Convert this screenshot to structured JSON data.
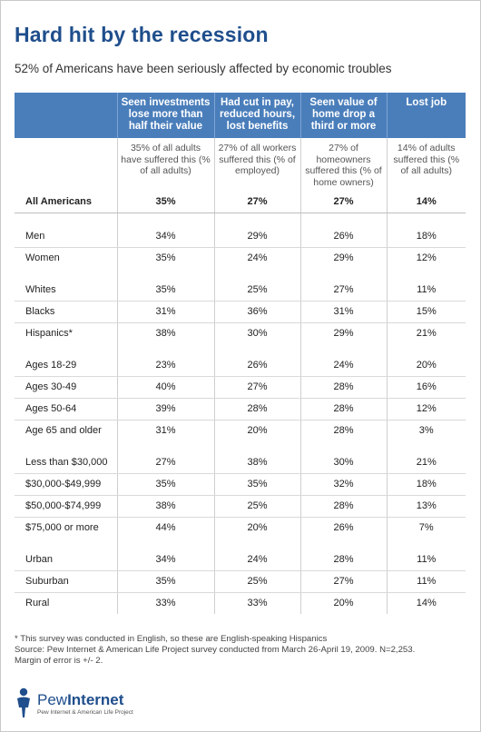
{
  "title": "Hard hit by the recession",
  "subtitle": "52% of Americans have been seriously affected by economic troubles",
  "chart_data": {
    "type": "table",
    "columns": [
      "",
      "Seen investments lose more than half their value",
      "Had cut in pay, reduced hours, lost benefits",
      "Seen value of home drop a third or more",
      "Lost job"
    ],
    "column_notes": [
      "",
      "35% of all adults have suffered this (% of all adults)",
      "27% of all workers suffered this (% of employed)",
      "27% of homeowners suffered this (% of home owners)",
      "14% of adults suffered this (% of all adults)"
    ],
    "all": {
      "label": "All Americans",
      "values": [
        "35%",
        "27%",
        "27%",
        "14%"
      ]
    },
    "groups": [
      [
        {
          "label": "Men",
          "values": [
            "34%",
            "29%",
            "26%",
            "18%"
          ]
        },
        {
          "label": "Women",
          "values": [
            "35%",
            "24%",
            "29%",
            "12%"
          ]
        }
      ],
      [
        {
          "label": "Whites",
          "values": [
            "35%",
            "25%",
            "27%",
            "11%"
          ]
        },
        {
          "label": "Blacks",
          "values": [
            "31%",
            "36%",
            "31%",
            "15%"
          ]
        },
        {
          "label": "Hispanics*",
          "values": [
            "38%",
            "30%",
            "29%",
            "21%"
          ]
        }
      ],
      [
        {
          "label": "Ages 18-29",
          "values": [
            "23%",
            "26%",
            "24%",
            "20%"
          ]
        },
        {
          "label": "Ages 30-49",
          "values": [
            "40%",
            "27%",
            "28%",
            "16%"
          ]
        },
        {
          "label": "Ages 50-64",
          "values": [
            "39%",
            "28%",
            "28%",
            "12%"
          ]
        },
        {
          "label": "Age 65 and older",
          "values": [
            "31%",
            "20%",
            "28%",
            "3%"
          ]
        }
      ],
      [
        {
          "label": "Less than $30,000",
          "values": [
            "27%",
            "38%",
            "30%",
            "21%"
          ]
        },
        {
          "label": "$30,000-$49,999",
          "values": [
            "35%",
            "35%",
            "32%",
            "18%"
          ]
        },
        {
          "label": "$50,000-$74,999",
          "values": [
            "38%",
            "25%",
            "28%",
            "13%"
          ]
        },
        {
          "label": "$75,000 or more",
          "values": [
            "44%",
            "20%",
            "26%",
            "7%"
          ]
        }
      ],
      [
        {
          "label": "Urban",
          "values": [
            "34%",
            "24%",
            "28%",
            "11%"
          ]
        },
        {
          "label": "Suburban",
          "values": [
            "35%",
            "25%",
            "27%",
            "11%"
          ]
        },
        {
          "label": "Rural",
          "values": [
            "33%",
            "33%",
            "20%",
            "14%"
          ]
        }
      ]
    ]
  },
  "footer": {
    "note1": "* This survey was conducted in English, so these are English-speaking Hispanics",
    "note2": "Source: Pew Internet & American Life Project survey conducted from March 26-April 19, 2009. N=2,253.",
    "note3": "Margin of error is +/- 2."
  },
  "logo": {
    "name_a": "Pew",
    "name_b": "Internet",
    "tagline": "Pew Internet & American Life Project"
  },
  "colors": {
    "header_bg": "#4a7ebb",
    "title": "#1f4e8c"
  }
}
